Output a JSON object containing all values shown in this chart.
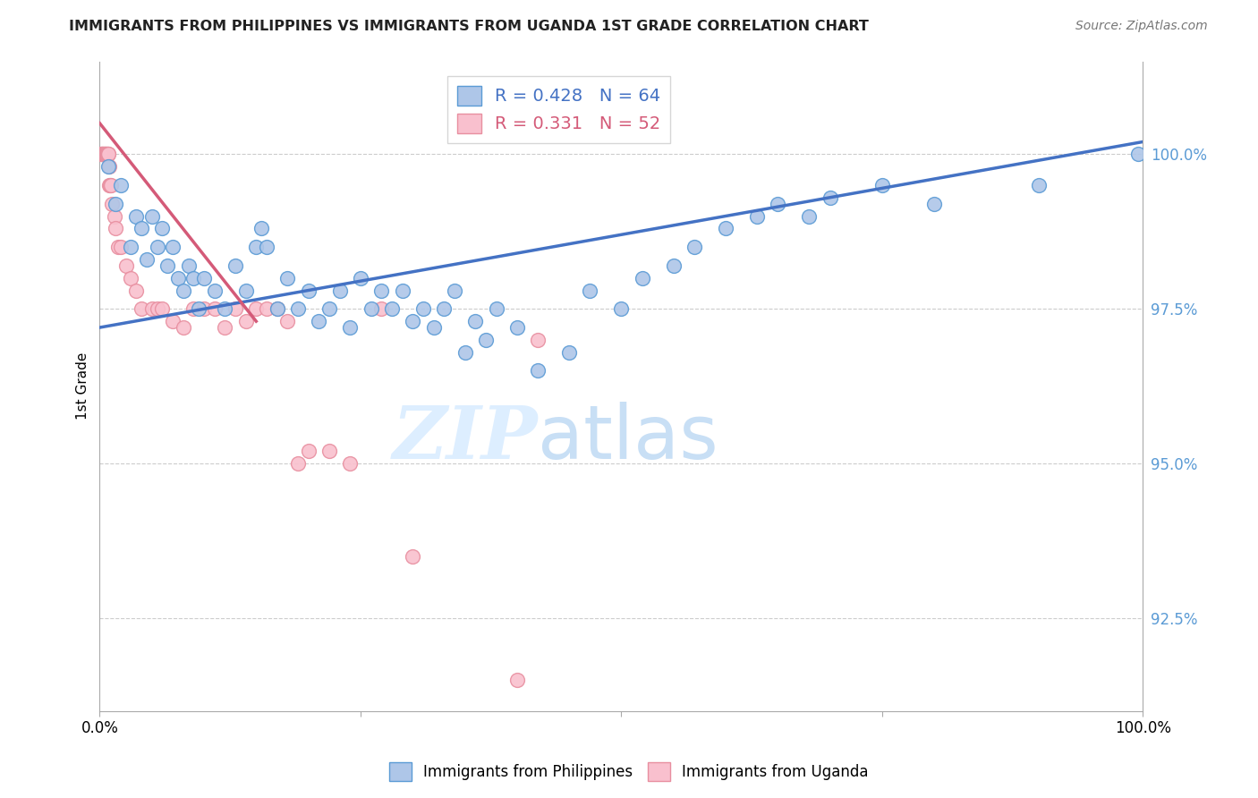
{
  "title": "IMMIGRANTS FROM PHILIPPINES VS IMMIGRANTS FROM UGANDA 1ST GRADE CORRELATION CHART",
  "source": "Source: ZipAtlas.com",
  "ylabel": "1st Grade",
  "y_tick_values": [
    92.5,
    95.0,
    97.5,
    100.0
  ],
  "xlim": [
    0.0,
    100.0
  ],
  "ylim": [
    91.0,
    101.5
  ],
  "legend_blue_label": "Immigrants from Philippines",
  "legend_pink_label": "Immigrants from Uganda",
  "R_blue": 0.428,
  "N_blue": 64,
  "R_pink": 0.331,
  "N_pink": 52,
  "blue_color": "#aec6e8",
  "blue_edge_color": "#5b9bd5",
  "blue_line_color": "#4472c4",
  "pink_color": "#f9c0ce",
  "pink_edge_color": "#e88fa0",
  "pink_line_color": "#d45a78",
  "ytick_color": "#5b9bd5",
  "watermark_zip": "ZIP",
  "watermark_atlas": "atlas",
  "watermark_color": "#ddeeff",
  "blue_scatter_x": [
    0.8,
    1.5,
    2.0,
    3.0,
    3.5,
    4.0,
    4.5,
    5.0,
    5.5,
    6.0,
    6.5,
    7.0,
    7.5,
    8.0,
    8.5,
    9.0,
    9.5,
    10.0,
    11.0,
    12.0,
    13.0,
    14.0,
    15.0,
    15.5,
    16.0,
    17.0,
    18.0,
    19.0,
    20.0,
    21.0,
    22.0,
    23.0,
    24.0,
    25.0,
    26.0,
    27.0,
    28.0,
    29.0,
    30.0,
    31.0,
    32.0,
    33.0,
    34.0,
    35.0,
    36.0,
    37.0,
    38.0,
    40.0,
    42.0,
    45.0,
    47.0,
    50.0,
    52.0,
    55.0,
    57.0,
    60.0,
    63.0,
    65.0,
    68.0,
    70.0,
    75.0,
    80.0,
    90.0,
    99.5
  ],
  "blue_scatter_y": [
    99.8,
    99.2,
    99.5,
    98.5,
    99.0,
    98.8,
    98.3,
    99.0,
    98.5,
    98.8,
    98.2,
    98.5,
    98.0,
    97.8,
    98.2,
    98.0,
    97.5,
    98.0,
    97.8,
    97.5,
    98.2,
    97.8,
    98.5,
    98.8,
    98.5,
    97.5,
    98.0,
    97.5,
    97.8,
    97.3,
    97.5,
    97.8,
    97.2,
    98.0,
    97.5,
    97.8,
    97.5,
    97.8,
    97.3,
    97.5,
    97.2,
    97.5,
    97.8,
    96.8,
    97.3,
    97.0,
    97.5,
    97.2,
    96.5,
    96.8,
    97.8,
    97.5,
    98.0,
    98.2,
    98.5,
    98.8,
    99.0,
    99.2,
    99.0,
    99.3,
    99.5,
    99.2,
    99.5,
    100.0
  ],
  "pink_scatter_x": [
    0.1,
    0.15,
    0.2,
    0.25,
    0.3,
    0.35,
    0.4,
    0.45,
    0.5,
    0.55,
    0.6,
    0.65,
    0.7,
    0.75,
    0.8,
    0.85,
    0.9,
    0.95,
    1.0,
    1.1,
    1.2,
    1.4,
    1.5,
    1.8,
    2.0,
    2.5,
    3.0,
    3.5,
    4.0,
    5.0,
    5.5,
    6.0,
    7.0,
    8.0,
    9.0,
    10.0,
    11.0,
    12.0,
    13.0,
    14.0,
    15.0,
    16.0,
    17.0,
    18.0,
    19.0,
    20.0,
    22.0,
    24.0,
    27.0,
    30.0,
    40.0,
    42.0
  ],
  "pink_scatter_y": [
    100.0,
    100.0,
    100.0,
    100.0,
    100.0,
    100.0,
    100.0,
    100.0,
    100.0,
    100.0,
    100.0,
    100.0,
    100.0,
    100.0,
    100.0,
    100.0,
    99.8,
    99.5,
    99.5,
    99.5,
    99.2,
    99.0,
    98.8,
    98.5,
    98.5,
    98.2,
    98.0,
    97.8,
    97.5,
    97.5,
    97.5,
    97.5,
    97.3,
    97.2,
    97.5,
    97.5,
    97.5,
    97.2,
    97.5,
    97.3,
    97.5,
    97.5,
    97.5,
    97.3,
    95.0,
    95.2,
    95.2,
    95.0,
    97.5,
    93.5,
    91.5,
    97.0
  ],
  "blue_trend_x": [
    0.0,
    100.0
  ],
  "blue_trend_y": [
    97.2,
    100.2
  ],
  "pink_trend_x": [
    0.0,
    15.0
  ],
  "pink_trend_y": [
    100.5,
    97.3
  ]
}
